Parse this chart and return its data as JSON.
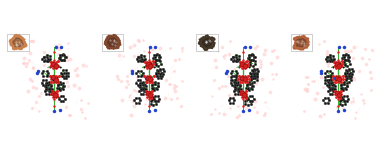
{
  "background_color": "#ffffff",
  "figure_width": 3.78,
  "figure_height": 1.53,
  "dpi": 100,
  "crystal_colors": [
    "#c87941",
    "#7a3b1e",
    "#3a2a1a",
    "#b05a30"
  ],
  "bond_color": "#33aa33",
  "Cd_color": "#cc2222",
  "O_color": "#dd2222",
  "N_color": "#2244cc",
  "C_color": "#111111",
  "ghost_color": "#ffcccc",
  "ghost_alpha": 0.5,
  "panel_bg": "#ffffff"
}
